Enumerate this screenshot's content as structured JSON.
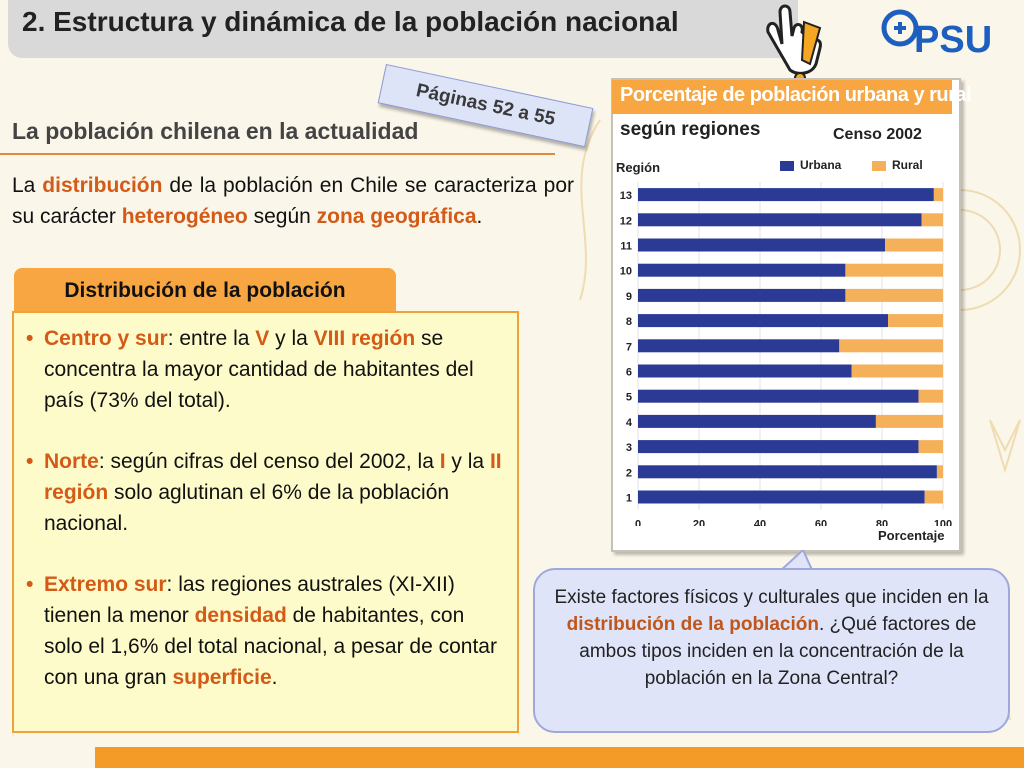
{
  "header": {
    "title": "2. Estructura y dinámica de la población nacional",
    "logo_text": "PSU",
    "page_tag": "Páginas 52 a 55"
  },
  "section": {
    "subtitle": "La población chilena en la actualidad"
  },
  "intro": {
    "t1": "La ",
    "h1": "distribución",
    "t2": " de la población en Chile se caracteriza por su carácter ",
    "h2": "heterogéneo",
    "t3": " según ",
    "h3": "zona geográfica",
    "t4": "."
  },
  "distribution": {
    "tab_label": "Distribución de la población",
    "bullets": [
      {
        "h1": "Centro y sur",
        "t1": ": entre la ",
        "h2": "V",
        "t2": " y la ",
        "h3": "VIII región",
        "t3": " se concentra la mayor cantidad de habitantes del país (73% del total)."
      },
      {
        "h1": "Norte",
        "t1": ":  según cifras del censo del 2002, la ",
        "h2": "I",
        "t2": " y la ",
        "h3": "II región",
        "t3": " solo aglutinan el 6% de la población nacional."
      },
      {
        "h1": "Extremo sur",
        "t1": ": las regiones australes (XI-XII) tienen la menor ",
        "h2": "densidad",
        "t2": " de habitantes, con solo el 1,6% del total nacional, a pesar de contar con una gran ",
        "h3": "superficie",
        "t3": "."
      }
    ]
  },
  "bubble": {
    "t1": "Existe factores físicos y culturales que inciden en la ",
    "h1": "distribución de la población",
    "t2": ". ¿Qué factores de ambos tipos inciden en la concentración de la población en la Zona Central?"
  },
  "chart_data": {
    "type": "bar",
    "orientation": "horizontal",
    "stacked": true,
    "title": "Porcentaje de población urbana y rural",
    "subtitle": "según regiones",
    "census_label": "Censo 2002",
    "ylabel": "Región",
    "xlabel": "Porcentaje",
    "xlim": [
      0,
      100
    ],
    "xticks": [
      0,
      20,
      40,
      60,
      80,
      100
    ],
    "categories": [
      "13",
      "12",
      "11",
      "10",
      "9",
      "8",
      "7",
      "6",
      "5",
      "4",
      "3",
      "2",
      "1"
    ],
    "series": [
      {
        "name": "Urbana",
        "color": "#2b3a95",
        "values": [
          97,
          93,
          81,
          68,
          68,
          82,
          66,
          70,
          92,
          78,
          92,
          98,
          94
        ]
      },
      {
        "name": "Rural",
        "color": "#f5b15a",
        "values": [
          3,
          7,
          19,
          32,
          32,
          18,
          34,
          30,
          8,
          22,
          8,
          2,
          6
        ]
      }
    ],
    "legend_position": "top"
  },
  "colors": {
    "accent_orange": "#f7a641",
    "highlight": "#d35a17",
    "urban": "#2b3a95",
    "rural": "#f5b15a"
  }
}
